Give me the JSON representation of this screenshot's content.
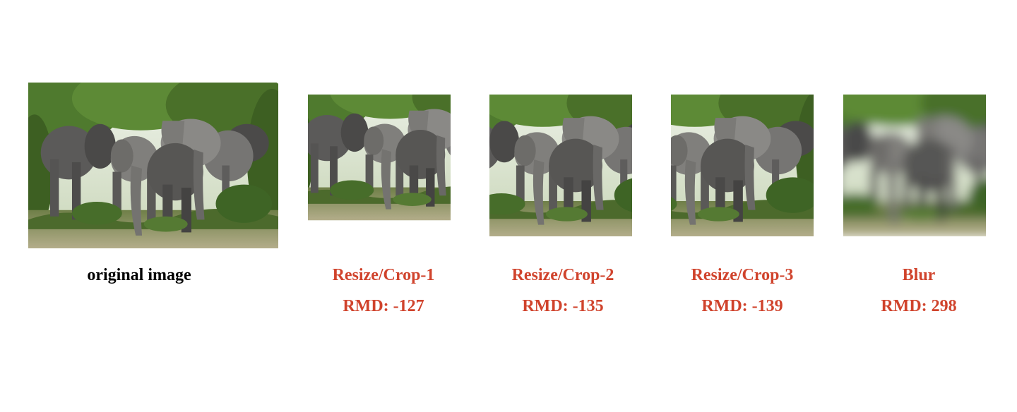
{
  "panels": [
    {
      "key": "original",
      "label": "original image",
      "label_color": "#000000"
    },
    {
      "key": "crop1",
      "label": "Resize/Crop-1",
      "rmd": "RMD: -127",
      "label_color": "#d0432c"
    },
    {
      "key": "crop2",
      "label": "Resize/Crop-2",
      "rmd": "RMD: -135",
      "label_color": "#d0432c"
    },
    {
      "key": "crop3",
      "label": "Resize/Crop-3",
      "rmd": "RMD: -139",
      "label_color": "#d0432c"
    },
    {
      "key": "blur",
      "label": "Blur",
      "rmd": "RMD: 298",
      "label_color": "#d0432c"
    }
  ],
  "image_subject": "elephant-herd-photo",
  "colors": {
    "sky": "#eef2ea",
    "foliage": "#4f7a2e",
    "foliage_dark": "#2f4a1c",
    "elephant": "#6b6a68",
    "elephant_dark": "#3f3e3d",
    "ground": "#a8a27f"
  }
}
